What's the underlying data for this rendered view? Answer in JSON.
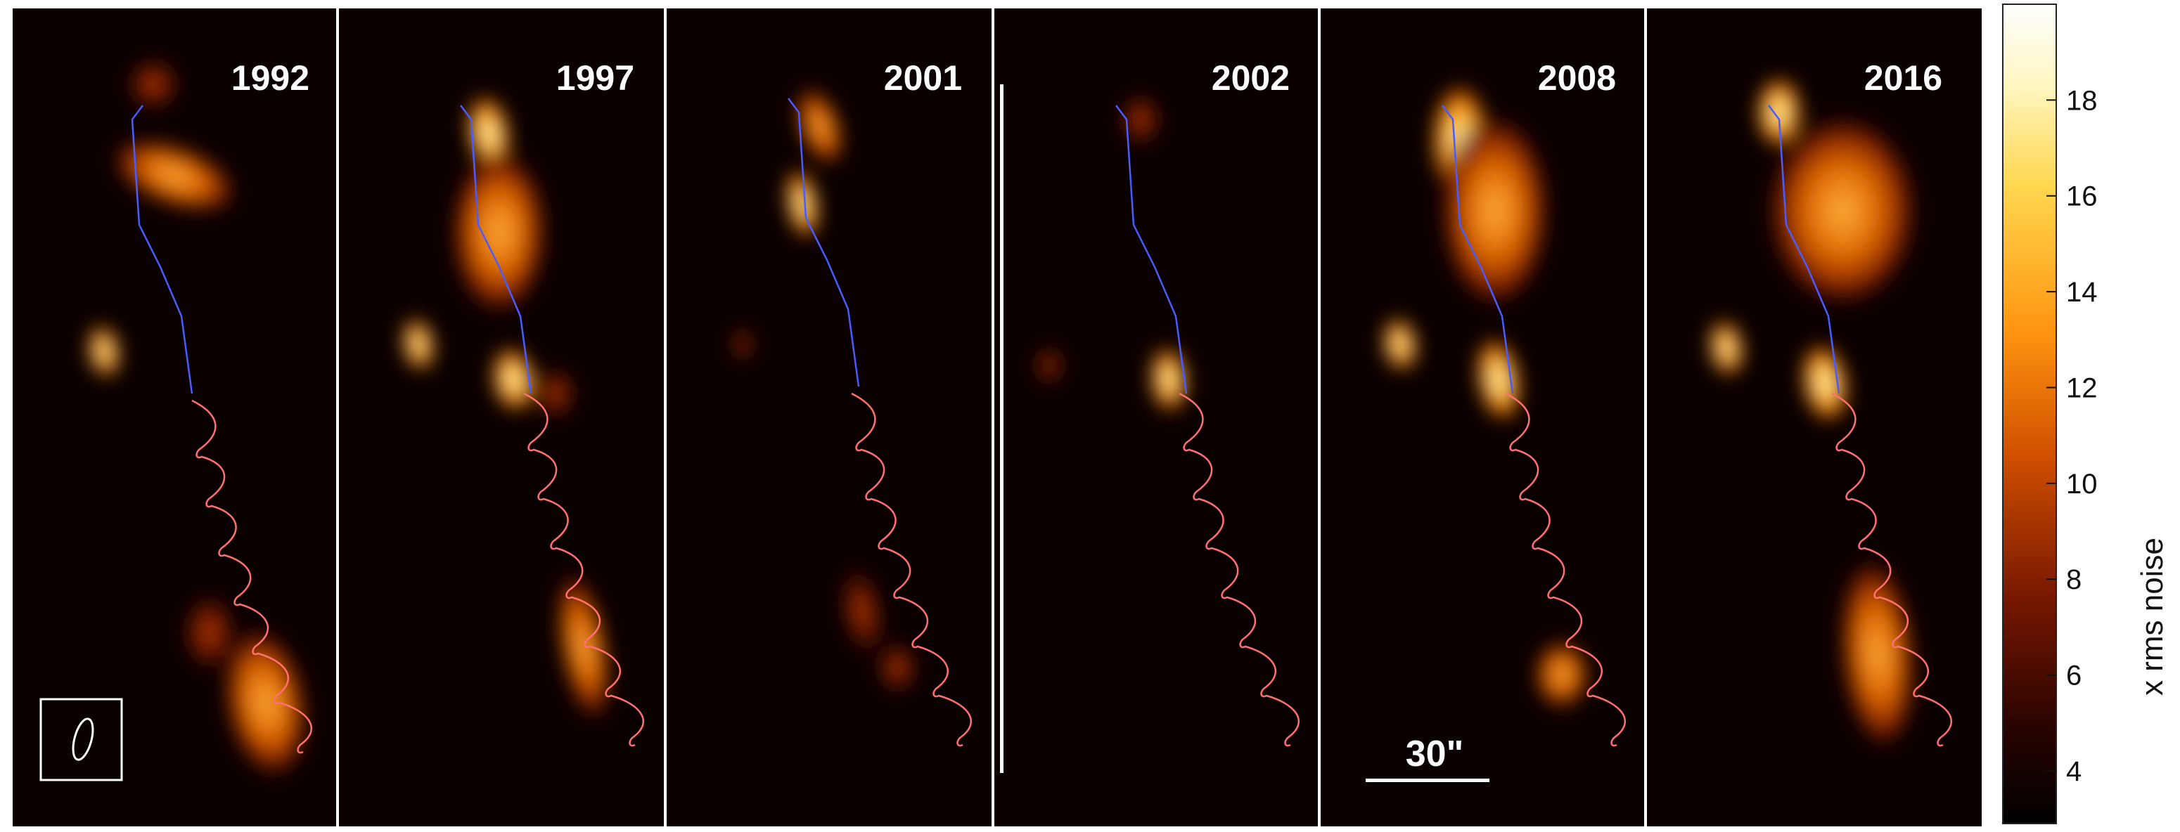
{
  "panels": [
    {
      "year": "1992"
    },
    {
      "year": "1997"
    },
    {
      "year": "2001"
    },
    {
      "year": "2002"
    },
    {
      "year": "2008"
    },
    {
      "year": "2016"
    }
  ],
  "scale_bar": {
    "label": "30\""
  },
  "colorbar": {
    "label": "x rms noise",
    "ticks": [
      "4",
      "6",
      "8",
      "10",
      "12",
      "14",
      "16",
      "18"
    ],
    "colormap": [
      "#000000",
      "#3a0800",
      "#8a2200",
      "#d45a00",
      "#ff9a10",
      "#ffe060",
      "#ffffff"
    ]
  },
  "colors": {
    "background": "#0b0000",
    "approach_path": "#4a5cff",
    "receding_path": "#ff7070",
    "panel_divider": "#ffffff"
  }
}
